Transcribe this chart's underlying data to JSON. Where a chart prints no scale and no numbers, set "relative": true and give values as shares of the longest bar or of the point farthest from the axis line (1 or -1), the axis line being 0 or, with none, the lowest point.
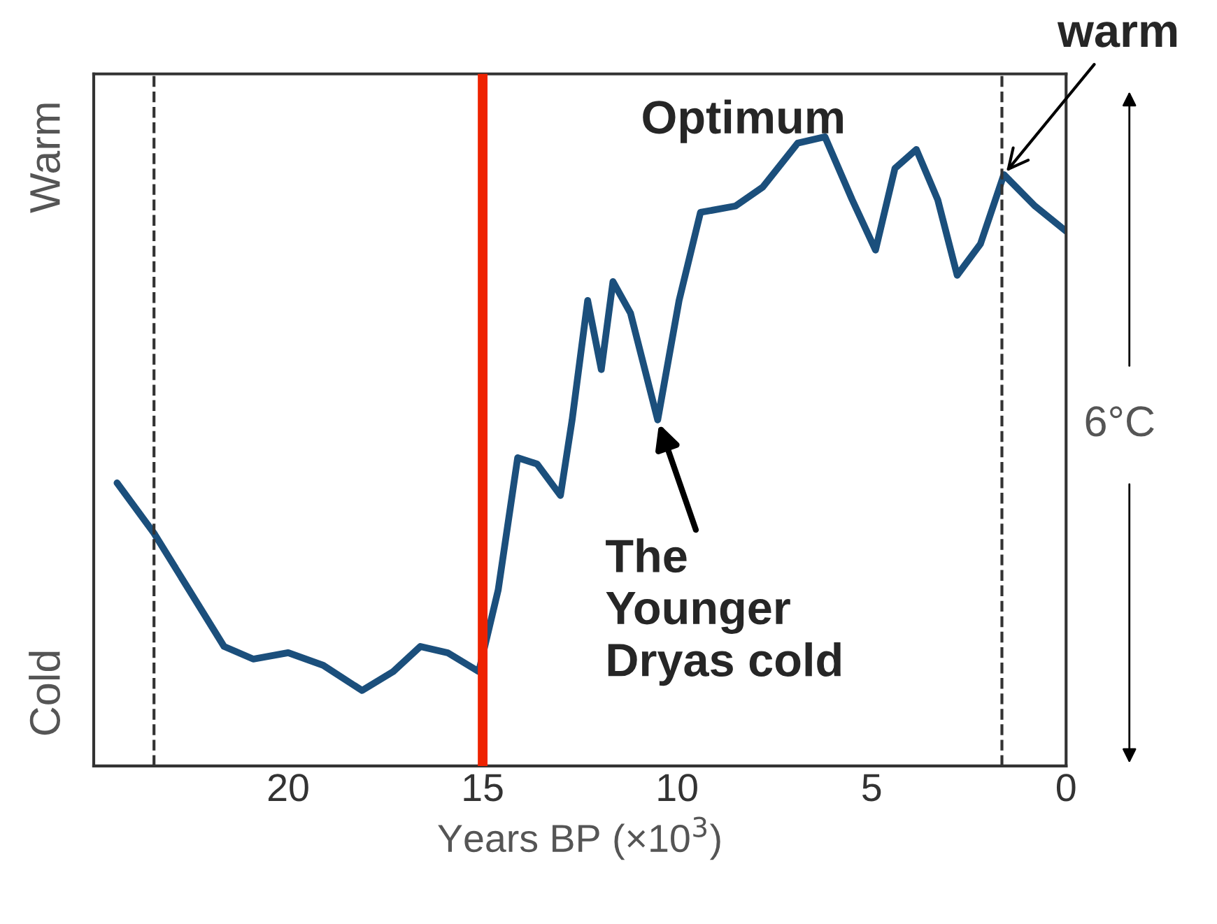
{
  "chart_data": {
    "type": "line",
    "relative": true,
    "xlabel": "Years BP (×10$^{3}$)",
    "x": [
      24.4,
      23.45,
      22.55,
      21.65,
      20.9,
      20.0,
      19.1,
      18.1,
      17.3,
      16.6,
      15.9,
      15.1,
      14.6,
      14.1,
      13.6,
      13.0,
      12.7,
      12.3,
      11.95,
      11.65,
      11.2,
      10.5,
      9.95,
      9.4,
      8.5,
      7.8,
      6.9,
      6.2,
      5.5,
      4.9,
      4.4,
      3.85,
      3.3,
      2.8,
      2.2,
      1.6,
      0.8,
      0.0
    ],
    "series": [
      {
        "color": "#1b4f7c",
        "values": [
          0.45,
          0.37,
          0.28,
          0.19,
          0.17,
          0.18,
          0.16,
          0.12,
          0.15,
          0.19,
          0.18,
          0.15,
          0.28,
          0.49,
          0.48,
          0.43,
          0.55,
          0.74,
          0.63,
          0.77,
          0.72,
          0.55,
          0.74,
          0.88,
          0.89,
          0.92,
          0.99,
          1.0,
          0.9,
          0.82,
          0.95,
          0.98,
          0.9,
          0.78,
          0.83,
          0.94,
          0.89,
          0.85
        ]
      }
    ],
    "xlim": [
      25,
      0
    ],
    "xticks": [
      20,
      15,
      10,
      5,
      0
    ],
    "tick_labels": "x",
    "grid": false,
    "line_style": "solid",
    "ref_lines": [
      {
        "axis": "x",
        "value": 15,
        "color": "#ee2200",
        "line_style": "solid"
      },
      {
        "axis": "x",
        "value": 23.45,
        "color": "#333333",
        "line_style": "dashed"
      },
      {
        "axis": "x",
        "value": 1.65,
        "color": "#333333",
        "line_style": "dashed"
      }
    ],
    "annotations": [
      {
        "text": "Optimum",
        "x": 6.2,
        "y": 1.0
      },
      {
        "text": "warm",
        "x": 1.6,
        "y": 0.94
      },
      {
        "text": "The\nYounger\nDryas cold",
        "x": 10.5,
        "y": 0.55
      },
      "Warm",
      "Cold",
      "6°C"
    ]
  }
}
